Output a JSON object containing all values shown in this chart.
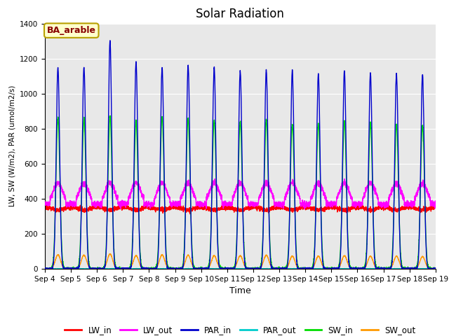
{
  "title": "Solar Radiation",
  "xlabel": "Time",
  "ylabel": "LW, SW (W/m2), PAR (umol/m2/s)",
  "ylim": [
    0,
    1400
  ],
  "yticks": [
    0,
    200,
    400,
    600,
    800,
    1000,
    1200,
    1400
  ],
  "xtick_labels": [
    "Sep 4",
    "Sep 5",
    "Sep 6",
    "Sep 7",
    "Sep 8",
    "Sep 9",
    "Sep 10",
    "Sep 11",
    "Sep 12",
    "Sep 13",
    "Sep 14",
    "Sep 15",
    "Sep 16",
    "Sep 17",
    "Sep 18",
    "Sep 19"
  ],
  "annotation": "BA_arable",
  "annotation_bg": "#ffffcc",
  "annotation_border": "#b8a000",
  "annotation_text_color": "#880000",
  "series": {
    "LW_in": {
      "color": "#ff0000",
      "lw": 1.0
    },
    "LW_out": {
      "color": "#ff00ff",
      "lw": 1.0
    },
    "PAR_in": {
      "color": "#0000cc",
      "lw": 1.0
    },
    "PAR_out": {
      "color": "#00cccc",
      "lw": 1.0
    },
    "SW_in": {
      "color": "#00dd00",
      "lw": 1.0
    },
    "SW_out": {
      "color": "#ff9900",
      "lw": 1.0
    }
  },
  "fig_bg": "#ffffff",
  "plot_bg": "#e8e8e8",
  "grid_color": "#ffffff",
  "n_days": 15,
  "pts_per_day": 288
}
